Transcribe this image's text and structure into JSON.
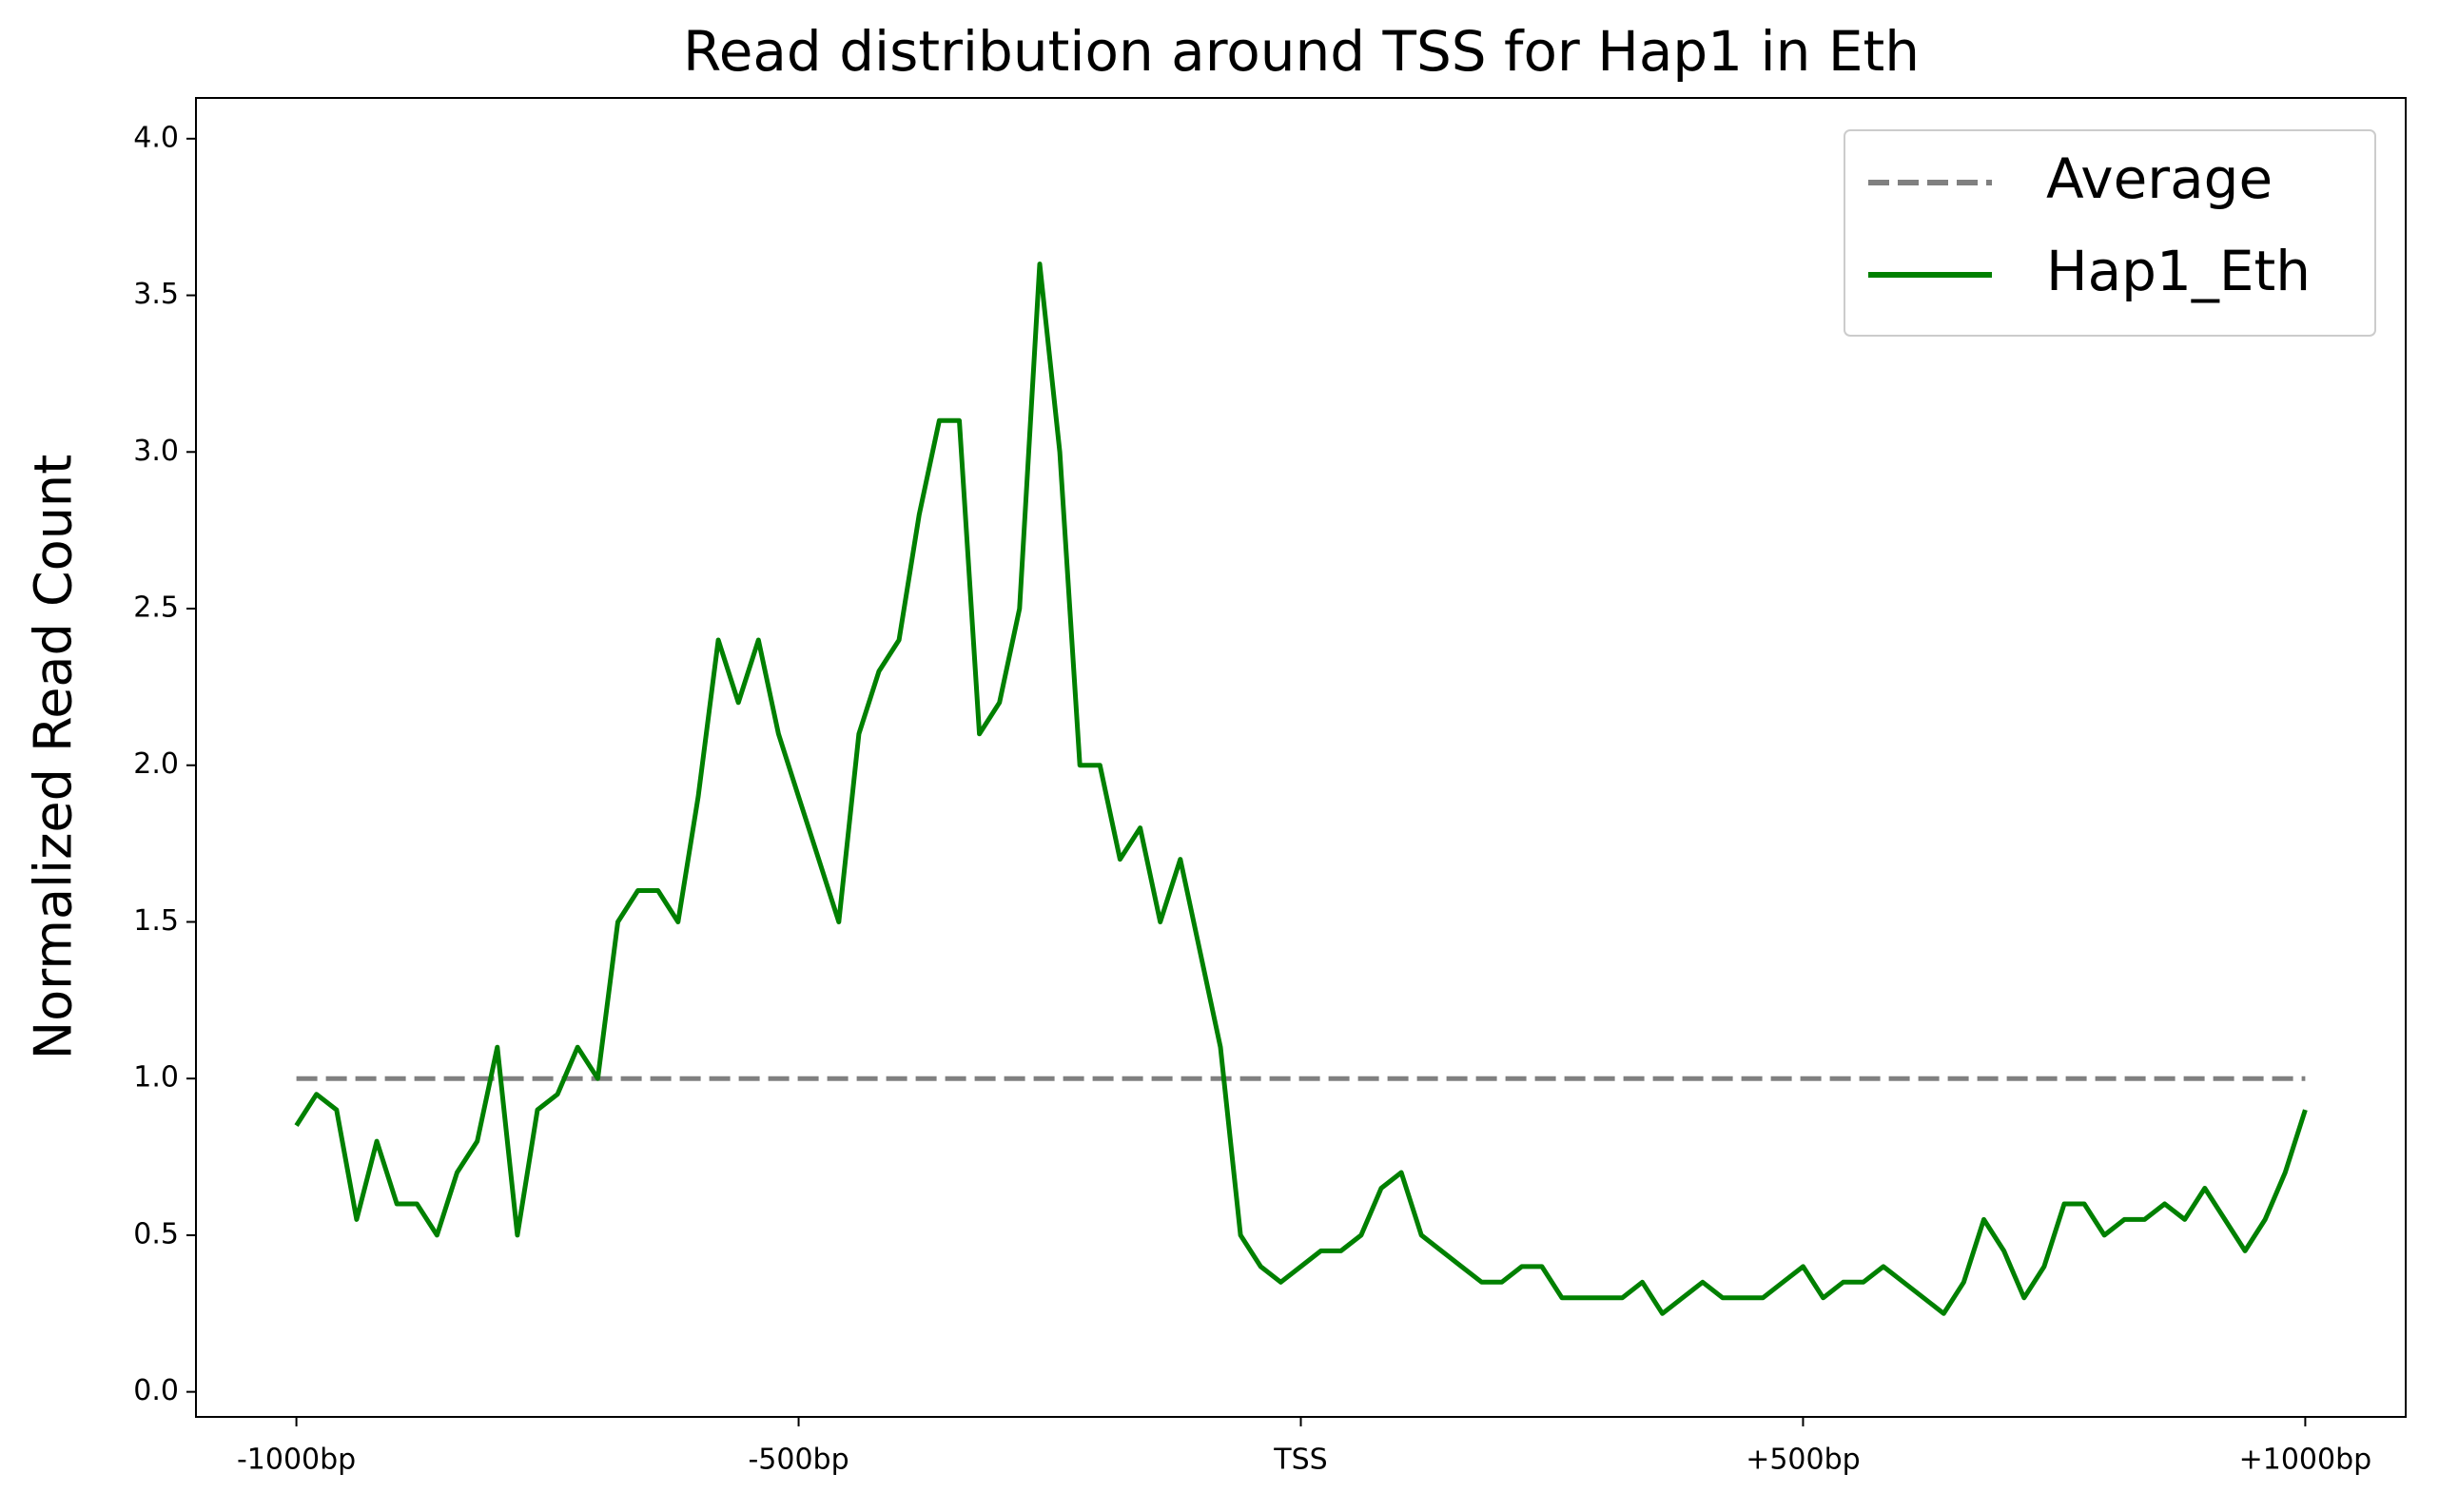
{
  "chart_data": {
    "type": "line",
    "title": "Read distribution around TSS for Hap1 in Eth",
    "y_label": "Normalized Read Count",
    "x": [
      -1000,
      -980,
      -960,
      -940,
      -920,
      -900,
      -880,
      -860,
      -840,
      -820,
      -800,
      -780,
      -760,
      -740,
      -720,
      -700,
      -680,
      -660,
      -640,
      -620,
      -600,
      -580,
      -560,
      -540,
      -520,
      -500,
      -480,
      -460,
      -440,
      -420,
      -400,
      -380,
      -360,
      -340,
      -320,
      -300,
      -280,
      -260,
      -240,
      -220,
      -200,
      -180,
      -160,
      -140,
      -120,
      -100,
      -80,
      -60,
      -40,
      -20,
      0,
      20,
      40,
      60,
      80,
      100,
      120,
      140,
      160,
      180,
      200,
      220,
      240,
      260,
      280,
      300,
      320,
      340,
      360,
      380,
      400,
      420,
      440,
      460,
      480,
      500,
      520,
      540,
      560,
      580,
      600,
      620,
      640,
      660,
      680,
      700,
      720,
      740,
      760,
      780,
      800,
      820,
      840,
      860,
      880,
      900,
      920,
      940,
      960,
      980,
      1000
    ],
    "series": [
      {
        "name": "Average",
        "color": "#808080",
        "dash": true,
        "x": [
          -1000,
          1000
        ],
        "values": [
          1,
          1
        ]
      },
      {
        "name": "Hap1_Eth",
        "color": "#008000",
        "dash": false,
        "values": [
          0.85,
          0.95,
          0.9,
          0.55,
          0.8,
          0.6,
          0.6,
          0.5,
          0.7,
          0.8,
          1.1,
          0.5,
          0.9,
          0.95,
          1.1,
          1.0,
          1.5,
          1.6,
          1.6,
          1.5,
          1.9,
          2.4,
          2.2,
          2.4,
          2.1,
          1.9,
          1.7,
          1.5,
          2.1,
          2.3,
          2.4,
          2.8,
          3.1,
          3.1,
          2.1,
          2.2,
          2.5,
          3.6,
          3.0,
          2.0,
          2.0,
          1.7,
          1.8,
          1.5,
          1.7,
          1.4,
          1.1,
          0.5,
          0.4,
          0.35,
          0.4,
          0.45,
          0.45,
          0.5,
          0.65,
          0.7,
          0.5,
          0.45,
          0.4,
          0.35,
          0.35,
          0.4,
          0.4,
          0.3,
          0.3,
          0.3,
          0.3,
          0.35,
          0.25,
          0.3,
          0.35,
          0.3,
          0.3,
          0.3,
          0.35,
          0.4,
          0.3,
          0.35,
          0.35,
          0.4,
          0.35,
          0.3,
          0.25,
          0.35,
          0.55,
          0.45,
          0.3,
          0.4,
          0.6,
          0.6,
          0.5,
          0.55,
          0.55,
          0.6,
          0.55,
          0.65,
          0.55,
          0.45,
          0.55,
          0.7,
          0.9
        ]
      }
    ],
    "xlim": [
      -1100,
      1100
    ],
    "xticks": [
      {
        "value": -1000,
        "label": "-1000bp"
      },
      {
        "value": -500,
        "label": "-500bp"
      },
      {
        "value": 0,
        "label": "TSS"
      },
      {
        "value": 500,
        "label": "+500bp"
      },
      {
        "value": 1000,
        "label": "+1000bp"
      }
    ],
    "ylim": [
      -0.08,
      4.13
    ],
    "yticks": [
      {
        "value": 0,
        "label": "0.0"
      },
      {
        "value": 0.5,
        "label": "0.5"
      },
      {
        "value": 1,
        "label": "1.0"
      },
      {
        "value": 1.5,
        "label": "1.5"
      },
      {
        "value": 2,
        "label": "2.0"
      },
      {
        "value": 2.5,
        "label": "2.5"
      },
      {
        "value": 3,
        "label": "3.0"
      },
      {
        "value": 3.5,
        "label": "3.5"
      },
      {
        "value": 4,
        "label": "4.0"
      }
    ],
    "legend": "upper right"
  }
}
